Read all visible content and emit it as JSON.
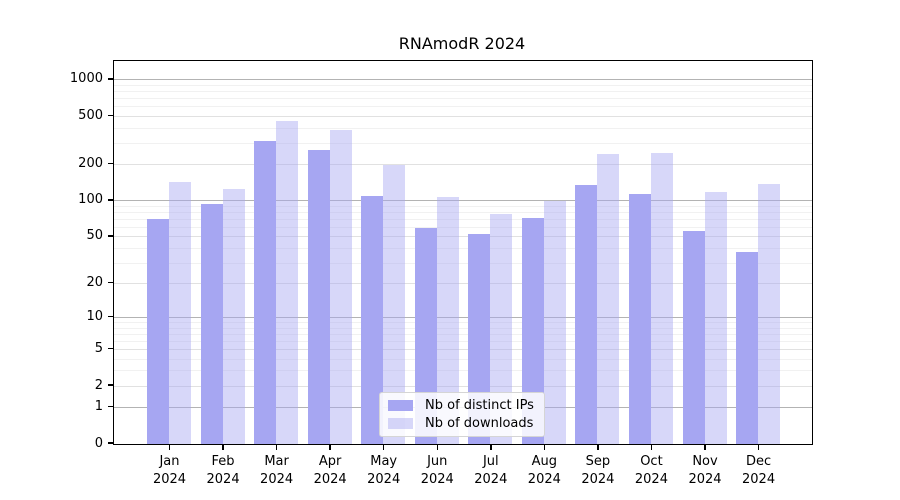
{
  "title": "RNAmodR 2024",
  "chart_data": {
    "type": "bar",
    "title": "RNAmodR 2024",
    "categories": [
      "Jan 2024",
      "Feb 2024",
      "Mar 2024",
      "Apr 2024",
      "May 2024",
      "Jun 2024",
      "Jul 2024",
      "Aug 2024",
      "Sep 2024",
      "Oct 2024",
      "Nov 2024",
      "Dec 2024"
    ],
    "series": [
      {
        "name": "Nb of distinct IPs",
        "color": "#a6a6f2",
        "fill_opacity": 1,
        "values": [
          70,
          95,
          315,
          265,
          110,
          59,
          53,
          72,
          136,
          114,
          56,
          37
        ]
      },
      {
        "name": "Nb of downloads",
        "color": "#a6a6f2",
        "fill_opacity": 0.45,
        "values": [
          143,
          126,
          460,
          390,
          200,
          108,
          78,
          100,
          245,
          248,
          118,
          138
        ]
      }
    ],
    "xlabel": "",
    "ylabel": "",
    "yscale": "log1p",
    "ylim": [
      0,
      1434
    ],
    "yticks": [
      0,
      1,
      2,
      5,
      10,
      20,
      50,
      100,
      200,
      500,
      1000
    ],
    "grid": {
      "major": [
        1,
        10,
        100,
        1000
      ],
      "sub": [
        2,
        5,
        20,
        50,
        200,
        500
      ],
      "minor": [
        3,
        4,
        6,
        7,
        8,
        9,
        30,
        40,
        60,
        70,
        80,
        90,
        300,
        400,
        600,
        700,
        800,
        900
      ]
    },
    "legend_position": "lower-center-inside"
  },
  "colors": {
    "bar_dark": "#a6a6f2",
    "bar_light": "#d8d8f8",
    "grid_major": "#b3b3b3",
    "grid_sub": "#e1e1e1",
    "grid_minor": "#f1f1f1",
    "spine": "#000000"
  }
}
